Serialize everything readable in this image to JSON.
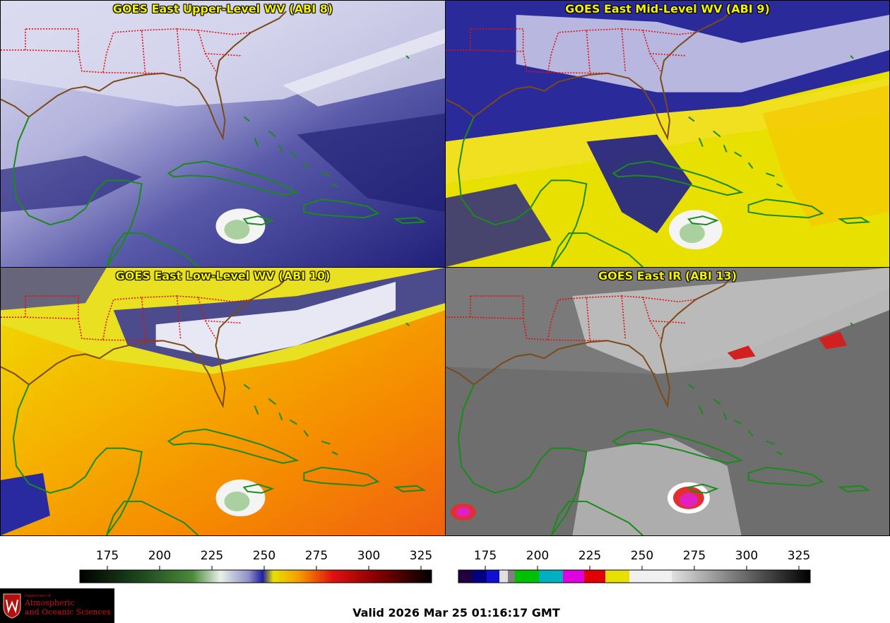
{
  "panels": [
    {
      "title": "GOES East Upper-Level WV (ABI 8)"
    },
    {
      "title": "GOES East Mid-Level WV (ABI 9)"
    },
    {
      "title": "GOES East Low-Level WV (ABI 10)"
    },
    {
      "title": "GOES East IR (ABI 13)"
    }
  ],
  "colorbars": {
    "wv": {
      "ticks": [
        "175",
        "200",
        "225",
        "250",
        "275",
        "300",
        "325"
      ]
    },
    "ir": {
      "ticks": [
        "175",
        "200",
        "225",
        "250",
        "275",
        "300",
        "325"
      ]
    }
  },
  "colors": {
    "coastline": "#1a8a1a",
    "state_borders": "#e01010",
    "title_text": "#f2f200"
  },
  "logo": {
    "dept": "Department of",
    "line1": "Atmospheric",
    "line2": "and Oceanic Sciences"
  },
  "footer": {
    "valid": "Valid 2026 Mar 25 01:16:17 GMT"
  }
}
